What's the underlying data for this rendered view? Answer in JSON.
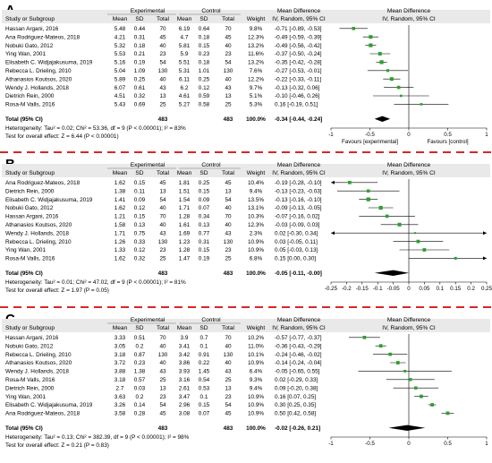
{
  "labels": {
    "study": "Study or Subgroup",
    "experimental": "Experimental",
    "control": "Control",
    "mean": "Mean",
    "sd": "SD",
    "total": "Total",
    "weight": "Weight",
    "md": "Mean Difference",
    "md_sub": "IV, Random, 95% CI",
    "total_row": "Total (95% CI)",
    "test_overall_prefix": "Test for overall effect: "
  },
  "colors": {
    "divider": "#d62728",
    "green": "#2ca02c",
    "header_bg": "#e9e9e9"
  },
  "chart_data": [
    {
      "type": "forest",
      "panel_label": "A",
      "axis": {
        "min": -1,
        "max": 1,
        "ticks": [
          "-1",
          "-0.5",
          "0",
          "0.5",
          "1"
        ],
        "tick_values": [
          -1,
          -0.5,
          0,
          0.5,
          1
        ],
        "favours_left": "Favours [experimental]",
        "favours_right": "Favours [control]"
      },
      "studies": [
        {
          "name": "Hassan Argani, 2016",
          "m1": "5.48",
          "sd1": "0.44",
          "n1": "70",
          "m2": "6.19",
          "sd2": "0.64",
          "n2": "70",
          "weight": "9.8%",
          "ci": "-0.71 [-0.89, -0.53]",
          "md": -0.71,
          "lo": -0.89,
          "hi": -0.53
        },
        {
          "name": "Ana Rodriguez-Mateos, 2018",
          "m1": "4.21",
          "sd1": "0.31",
          "n1": "45",
          "m2": "4.7",
          "sd2": "0.18",
          "n2": "45",
          "weight": "12.3%",
          "ci": "-0.49 [-0.59, -0.39]",
          "md": -0.49,
          "lo": -0.59,
          "hi": -0.39
        },
        {
          "name": "Nobuki Gato, 2012",
          "m1": "5.32",
          "sd1": "0.18",
          "n1": "40",
          "m2": "5.81",
          "sd2": "0.15",
          "n2": "40",
          "weight": "13.2%",
          "ci": "-0.49 [-0.56, -0.42]",
          "md": -0.49,
          "lo": -0.56,
          "hi": -0.42
        },
        {
          "name": "Ying Wan, 2001",
          "m1": "5.53",
          "sd1": "0.21",
          "n1": "23",
          "m2": "5.9",
          "sd2": "0.23",
          "n2": "23",
          "weight": "11.6%",
          "ci": "-0.37 [-0.50, -0.24]",
          "md": -0.37,
          "lo": -0.5,
          "hi": -0.24
        },
        {
          "name": "Elisabeth C. Widjajakusuma, 2019",
          "m1": "5.16",
          "sd1": "0.19",
          "n1": "54",
          "m2": "5.51",
          "sd2": "0.18",
          "n2": "54",
          "weight": "13.2%",
          "ci": "-0.35 [-0.42, -0.28]",
          "md": -0.35,
          "lo": -0.42,
          "hi": -0.28
        },
        {
          "name": "Rebecca L. Drieling, 2010",
          "m1": "5.04",
          "sd1": "1.09",
          "n1": "130",
          "m2": "5.31",
          "sd2": "1.01",
          "n2": "130",
          "weight": "7.6%",
          "ci": "-0.27 [-0.53, -0.01]",
          "md": -0.27,
          "lo": -0.53,
          "hi": -0.01
        },
        {
          "name": "Athanasios Koutsos, 2020",
          "m1": "5.89",
          "sd1": "0.25",
          "n1": "40",
          "m2": "6.11",
          "sd2": "0.25",
          "n2": "40",
          "weight": "12.2%",
          "ci": "-0.22 [-0.33, -0.11]",
          "md": -0.22,
          "lo": -0.33,
          "hi": -0.11
        },
        {
          "name": "Wendy J. Hollands, 2018",
          "m1": "6.07",
          "sd1": "0.61",
          "n1": "43",
          "m2": "6.2",
          "sd2": "0.12",
          "n2": "43",
          "weight": "9.7%",
          "ci": "-0.13 [-0.32, 0.06]",
          "md": -0.13,
          "lo": -0.32,
          "hi": 0.06
        },
        {
          "name": "Dietrich Rein, 2000",
          "m1": "4.51",
          "sd1": "0.32",
          "n1": "13",
          "m2": "4.61",
          "sd2": "0.59",
          "n2": "13",
          "weight": "5.1%",
          "ci": "-0.10 [-0.46, 0.26]",
          "md": -0.1,
          "lo": -0.46,
          "hi": 0.26
        },
        {
          "name": "Rosa-M Valls, 2016",
          "m1": "5.43",
          "sd1": "0.69",
          "n1": "25",
          "m2": "5.27",
          "sd2": "0.58",
          "n2": "25",
          "weight": "5.3%",
          "ci": "0.16 [-0.19, 0.51]",
          "md": 0.16,
          "lo": -0.19,
          "hi": 0.51
        }
      ],
      "total": {
        "n1": "483",
        "n2": "483",
        "weight": "100.0%",
        "ci": "-0.34 [-0.44, -0.24]",
        "md": -0.34,
        "lo": -0.44,
        "hi": -0.24
      },
      "heterogeneity": "Heterogeneity: Tau² = 0.02; Chi² = 53.36, df = 9 (P < 0.00001); I² = 83%",
      "overall": "Z = 6.44 (P < 0.00001)"
    },
    {
      "type": "forest",
      "panel_label": "B",
      "axis": {
        "min": -0.25,
        "max": 0.25,
        "ticks": [
          "-0.25",
          "-0.2",
          "-0.15",
          "-0.1",
          "-0.05",
          "0",
          "0.05",
          "0.1",
          "0.15",
          "0.2",
          "0.25"
        ],
        "tick_values": [
          -0.25,
          -0.2,
          -0.15,
          -0.1,
          -0.05,
          0,
          0.05,
          0.1,
          0.15,
          0.2,
          0.25
        ],
        "favours_left": "",
        "favours_right": ""
      },
      "studies": [
        {
          "name": "Ana Rodriguez-Mateos, 2018",
          "m1": "1.62",
          "sd1": "0.15",
          "n1": "45",
          "m2": "1.81",
          "sd2": "0.25",
          "n2": "45",
          "weight": "10.4%",
          "ci": "-0.19 [-0.28, -0.10]",
          "md": -0.19,
          "lo": -0.28,
          "hi": -0.1
        },
        {
          "name": "Dietrich Rein, 2000",
          "m1": "1.38",
          "sd1": "0.11",
          "n1": "13",
          "m2": "1.51",
          "sd2": "0.15",
          "n2": "13",
          "weight": "9.4%",
          "ci": "-0.13 [-0.23, -0.03]",
          "md": -0.13,
          "lo": -0.23,
          "hi": -0.03
        },
        {
          "name": "Elisabeth C. Widjajakusuma, 2019",
          "m1": "1.41",
          "sd1": "0.09",
          "n1": "54",
          "m2": "1.54",
          "sd2": "0.09",
          "n2": "54",
          "weight": "13.5%",
          "ci": "-0.13 [-0.16, -0.10]",
          "md": -0.13,
          "lo": -0.16,
          "hi": -0.1
        },
        {
          "name": "Nobuki Gato, 2012",
          "m1": "1.62",
          "sd1": "0.12",
          "n1": "40",
          "m2": "1.71",
          "sd2": "0.07",
          "n2": "40",
          "weight": "13.1%",
          "ci": "-0.09 [-0.13, -0.05]",
          "md": -0.09,
          "lo": -0.13,
          "hi": -0.05
        },
        {
          "name": "Hassan Argani, 2016",
          "m1": "1.21",
          "sd1": "0.15",
          "n1": "70",
          "m2": "1.28",
          "sd2": "0.34",
          "n2": "70",
          "weight": "10.3%",
          "ci": "-0.07 [-0.16, 0.02]",
          "md": -0.07,
          "lo": -0.16,
          "hi": 0.02
        },
        {
          "name": "Athanasios Koutsos, 2020",
          "m1": "1.58",
          "sd1": "0.13",
          "n1": "40",
          "m2": "1.61",
          "sd2": "0.13",
          "n2": "40",
          "weight": "12.3%",
          "ci": "-0.03 [-0.09, 0.03]",
          "md": -0.03,
          "lo": -0.09,
          "hi": 0.03
        },
        {
          "name": "Wendy J. Hollands, 2018",
          "m1": "1.71",
          "sd1": "0.75",
          "n1": "43",
          "m2": "1.69",
          "sd2": "0.77",
          "n2": "43",
          "weight": "2.3%",
          "ci": "0.02 [-0.30, 0.34]",
          "md": 0.02,
          "lo": -0.3,
          "hi": 0.34
        },
        {
          "name": "Rebecca L. Drieling, 2010",
          "m1": "1.26",
          "sd1": "0.33",
          "n1": "130",
          "m2": "1.23",
          "sd2": "0.31",
          "n2": "130",
          "weight": "10.9%",
          "ci": "0.03 [-0.05, 0.11]",
          "md": 0.03,
          "lo": -0.05,
          "hi": 0.11
        },
        {
          "name": "Ying Wan, 2001",
          "m1": "1.33",
          "sd1": "0.12",
          "n1": "23",
          "m2": "1.28",
          "sd2": "0.15",
          "n2": "23",
          "weight": "10.9%",
          "ci": "0.05 [-0.03, 0.13]",
          "md": 0.05,
          "lo": -0.03,
          "hi": 0.13
        },
        {
          "name": "Rosa-M Valls, 2016",
          "m1": "1.62",
          "sd1": "0.32",
          "n1": "25",
          "m2": "1.47",
          "sd2": "0.19",
          "n2": "25",
          "weight": "6.8%",
          "ci": "0.15 [0.00, 0.30]",
          "md": 0.15,
          "lo": 0.0,
          "hi": 0.3
        }
      ],
      "total": {
        "n1": "483",
        "n2": "483",
        "weight": "100.0%",
        "ci": "-0.05 [-0.11, -0.00]",
        "md": -0.05,
        "lo": -0.11,
        "hi": -0.0
      },
      "heterogeneity": "Heterogeneity: Tau² = 0.01; Chi² = 47.02, df = 9 (P < 0.00001); I² = 81%",
      "overall": "Z = 1.97 (P = 0.05)"
    },
    {
      "type": "forest",
      "panel_label": "C",
      "axis": {
        "min": -1,
        "max": 1,
        "ticks": [
          "-1",
          "-0.5",
          "0",
          "0.5",
          "1"
        ],
        "tick_values": [
          -1,
          -0.5,
          0,
          0.5,
          1
        ],
        "favours_left": "",
        "favours_right": ""
      },
      "studies": [
        {
          "name": "Hassan Argani, 2016",
          "m1": "3.33",
          "sd1": "0.51",
          "n1": "70",
          "m2": "3.9",
          "sd2": "0.7",
          "n2": "70",
          "weight": "10.2%",
          "ci": "-0.57 [-0.77, -0.37]",
          "md": -0.57,
          "lo": -0.77,
          "hi": -0.37
        },
        {
          "name": "Nobuki Gato, 2012",
          "m1": "3.05",
          "sd1": "0.2",
          "n1": "40",
          "m2": "3.41",
          "sd2": "0.1",
          "n2": "40",
          "weight": "11.0%",
          "ci": "-0.36 [-0.43, -0.29]",
          "md": -0.36,
          "lo": -0.43,
          "hi": -0.29
        },
        {
          "name": "Rebecca L. Drieling, 2010",
          "m1": "3.18",
          "sd1": "0.87",
          "n1": "130",
          "m2": "3.42",
          "sd2": "0.91",
          "n2": "130",
          "weight": "10.1%",
          "ci": "-0.24 [-0.46, -0.02]",
          "md": -0.24,
          "lo": -0.46,
          "hi": -0.02
        },
        {
          "name": "Athanasios Koutsos, 2020",
          "m1": "3.72",
          "sd1": "0.23",
          "n1": "40",
          "m2": "3.86",
          "sd2": "0.22",
          "n2": "40",
          "weight": "10.9%",
          "ci": "-0.14 [-0.24, -0.04]",
          "md": -0.14,
          "lo": -0.24,
          "hi": -0.04
        },
        {
          "name": "Wendy J. Hollands, 2018",
          "m1": "3.88",
          "sd1": "1.38",
          "n1": "43",
          "m2": "3.93",
          "sd2": "1.45",
          "n2": "43",
          "weight": "6.4%",
          "ci": "-0.05 [-0.65, 0.55]",
          "md": -0.05,
          "lo": -0.65,
          "hi": 0.55
        },
        {
          "name": "Rosa-M Valls, 2016",
          "m1": "3.18",
          "sd1": "0.57",
          "n1": "25",
          "m2": "3.16",
          "sd2": "0.54",
          "n2": "25",
          "weight": "9.3%",
          "ci": "0.02 [-0.29, 0.33]",
          "md": 0.02,
          "lo": -0.29,
          "hi": 0.33
        },
        {
          "name": "Dietrich Rein, 2000",
          "m1": "2.7",
          "sd1": "0.03",
          "n1": "13",
          "m2": "2.61",
          "sd2": "0.53",
          "n2": "13",
          "weight": "9.4%",
          "ci": "0.09 [-0.20, 0.38]",
          "md": 0.09,
          "lo": -0.2,
          "hi": 0.38
        },
        {
          "name": "Ying Wan, 2001",
          "m1": "3.63",
          "sd1": "0.2",
          "n1": "23",
          "m2": "3.47",
          "sd2": "0.1",
          "n2": "23",
          "weight": "10.9%",
          "ci": "0.16 [0.07, 0.25]",
          "md": 0.16,
          "lo": 0.07,
          "hi": 0.25
        },
        {
          "name": "Elisabeth C. Widjajakusuma, 2019",
          "m1": "3.26",
          "sd1": "0.14",
          "n1": "54",
          "m2": "2.96",
          "sd2": "0.15",
          "n2": "54",
          "weight": "10.9%",
          "ci": "0.30 [0.25, 0.35]",
          "md": 0.3,
          "lo": 0.25,
          "hi": 0.35
        },
        {
          "name": "Ana Rodriguez-Mateos, 2018",
          "m1": "3.58",
          "sd1": "0.28",
          "n1": "45",
          "m2": "3.08",
          "sd2": "0.07",
          "n2": "45",
          "weight": "10.9%",
          "ci": "0.50 [0.42, 0.58]",
          "md": 0.5,
          "lo": 0.42,
          "hi": 0.58
        }
      ],
      "total": {
        "n1": "483",
        "n2": "483",
        "weight": "100.0%",
        "ci": "-0.02 [-0.26, 0.21]",
        "md": -0.02,
        "lo": -0.26,
        "hi": 0.21
      },
      "heterogeneity": "Heterogeneity: Tau² = 0.13; Chi² = 382.39, df = 9 (P < 0.00001); I² = 98%",
      "overall": "Z = 0.21 (P = 0.83)"
    }
  ]
}
